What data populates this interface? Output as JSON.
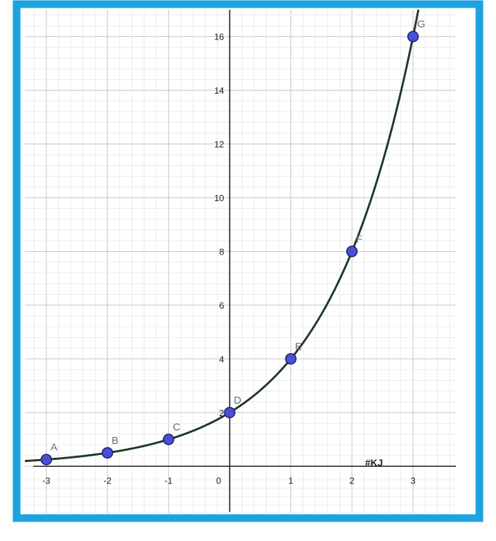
{
  "colors": {
    "border": "#1ea3e0",
    "curve": "#1f3b24",
    "point_fill": "#4b4fd6",
    "point_stroke": "#1c1f6a",
    "grid_major": "#c9c9c9",
    "grid_minor": "#e6e6e6",
    "axis": "#1a1a1a",
    "point_label": "#6d6d6d"
  },
  "watermark": "#KJ",
  "chart_data": {
    "type": "line",
    "function": "y = 2^(x+1)",
    "xlim": [
      -3.35,
      3.7
    ],
    "ylim": [
      -0.2,
      17
    ],
    "x_ticks": [
      -3,
      -2,
      -1,
      0,
      1,
      2,
      3
    ],
    "x_tick_labels": [
      "-3",
      "-2",
      "-1",
      "0",
      "1",
      "2",
      "3"
    ],
    "y_ticks": [
      2,
      4,
      6,
      8,
      10,
      12,
      14,
      16
    ],
    "y_tick_labels": [
      "2",
      "4",
      "6",
      "8",
      "10",
      "12",
      "14",
      "16"
    ],
    "grid": true,
    "points": [
      {
        "label": "A",
        "x": -3,
        "y": 0.25
      },
      {
        "label": "B",
        "x": -2,
        "y": 0.5
      },
      {
        "label": "C",
        "x": -1,
        "y": 1
      },
      {
        "label": "D",
        "x": 0,
        "y": 2
      },
      {
        "label": "E",
        "x": 1,
        "y": 4
      },
      {
        "label": "F",
        "x": 2,
        "y": 8
      },
      {
        "label": "G",
        "x": 3,
        "y": 16
      }
    ]
  }
}
